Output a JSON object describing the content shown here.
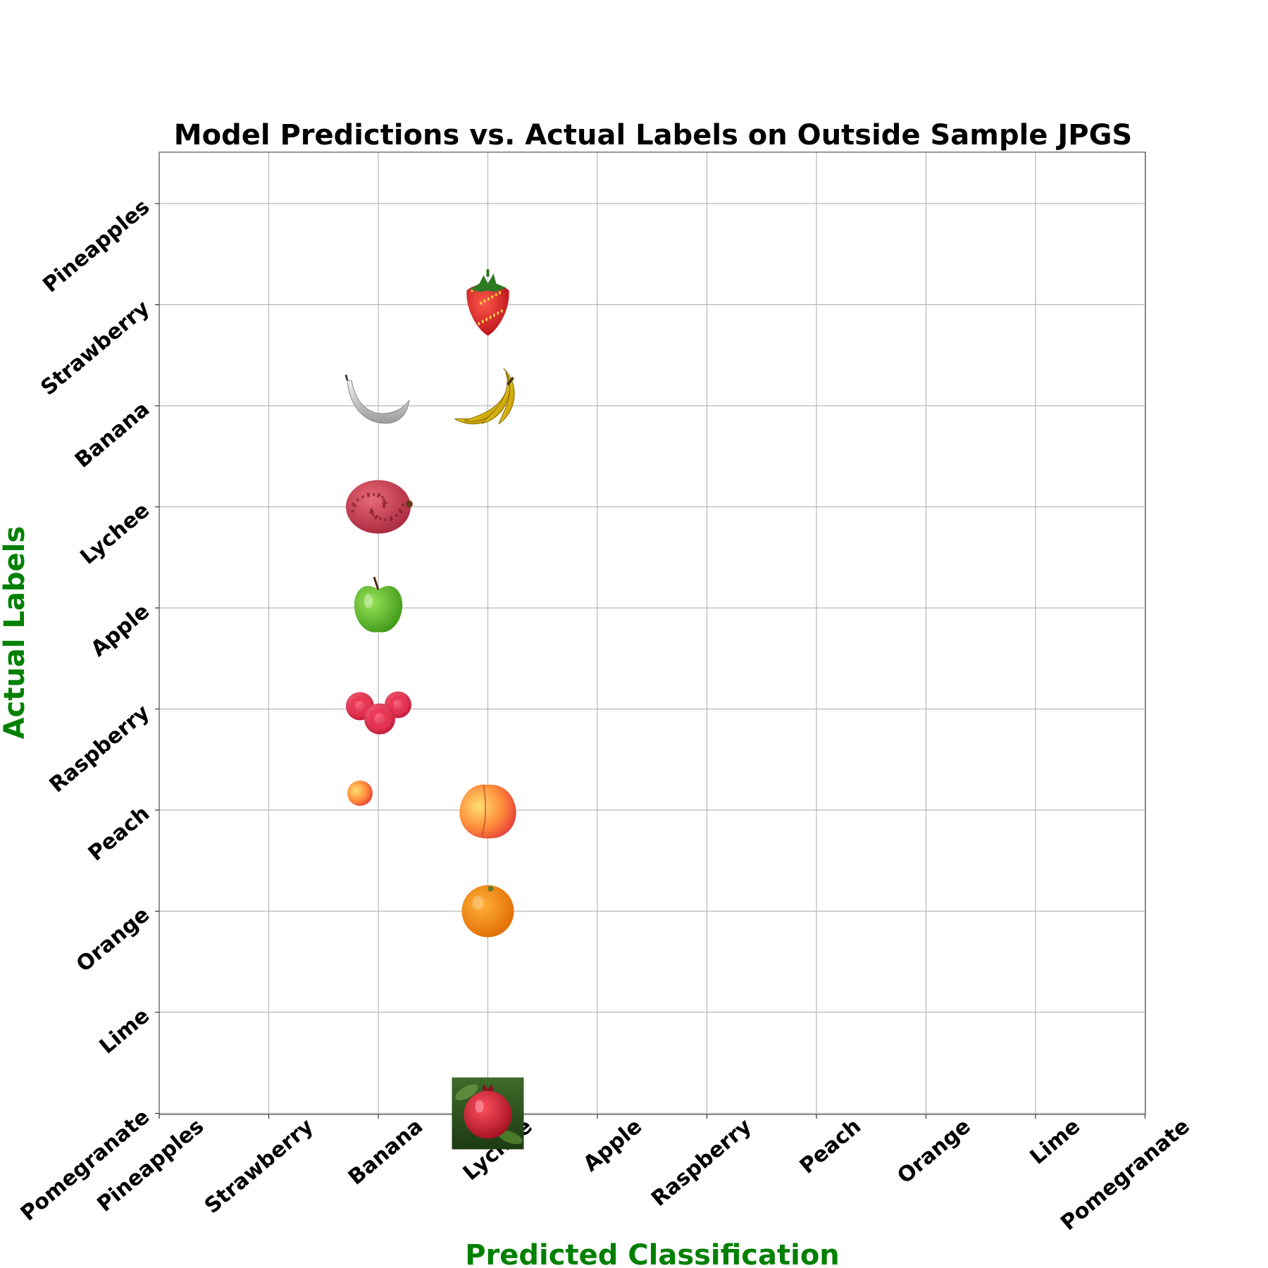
{
  "chart_data": {
    "type": "scatter",
    "title": "Model Predictions vs. Actual Labels on Outside Sample JPGS",
    "xlabel": "Predicted Classification",
    "ylabel": "Actual Labels",
    "x_categories": [
      "Pineapples",
      "Strawberry",
      "Banana",
      "Lychee",
      "Apple",
      "Raspberry",
      "Peach",
      "Orange",
      "Lime",
      "Pomegranate"
    ],
    "y_categories": [
      "Pineapples",
      "Strawberry",
      "Banana",
      "Lychee",
      "Apple",
      "Raspberry",
      "Peach",
      "Orange",
      "Lime",
      "Pomegranate"
    ],
    "grid": true,
    "label_color": "#008000",
    "points": [
      {
        "actual": "Strawberry",
        "predicted": "Lychee",
        "icon": "strawberry-icon"
      },
      {
        "actual": "Banana",
        "predicted": "Banana",
        "icon": "banana-grayscale-icon"
      },
      {
        "actual": "Banana",
        "predicted": "Lychee",
        "icon": "banana-bunch-icon"
      },
      {
        "actual": "Lychee",
        "predicted": "Banana",
        "icon": "lychee-icon"
      },
      {
        "actual": "Apple",
        "predicted": "Banana",
        "icon": "green-apple-icon"
      },
      {
        "actual": "Raspberry",
        "predicted": "Banana",
        "icon": "raspberries-icon"
      },
      {
        "actual": "Peach",
        "predicted": "Banana",
        "icon": "small-peach-icon"
      },
      {
        "actual": "Peach",
        "predicted": "Lychee",
        "icon": "peach-icon"
      },
      {
        "actual": "Orange",
        "predicted": "Lychee",
        "icon": "orange-icon"
      },
      {
        "actual": "Pomegranate",
        "predicted": "Lychee",
        "icon": "pomegranate-photo-icon"
      }
    ]
  }
}
